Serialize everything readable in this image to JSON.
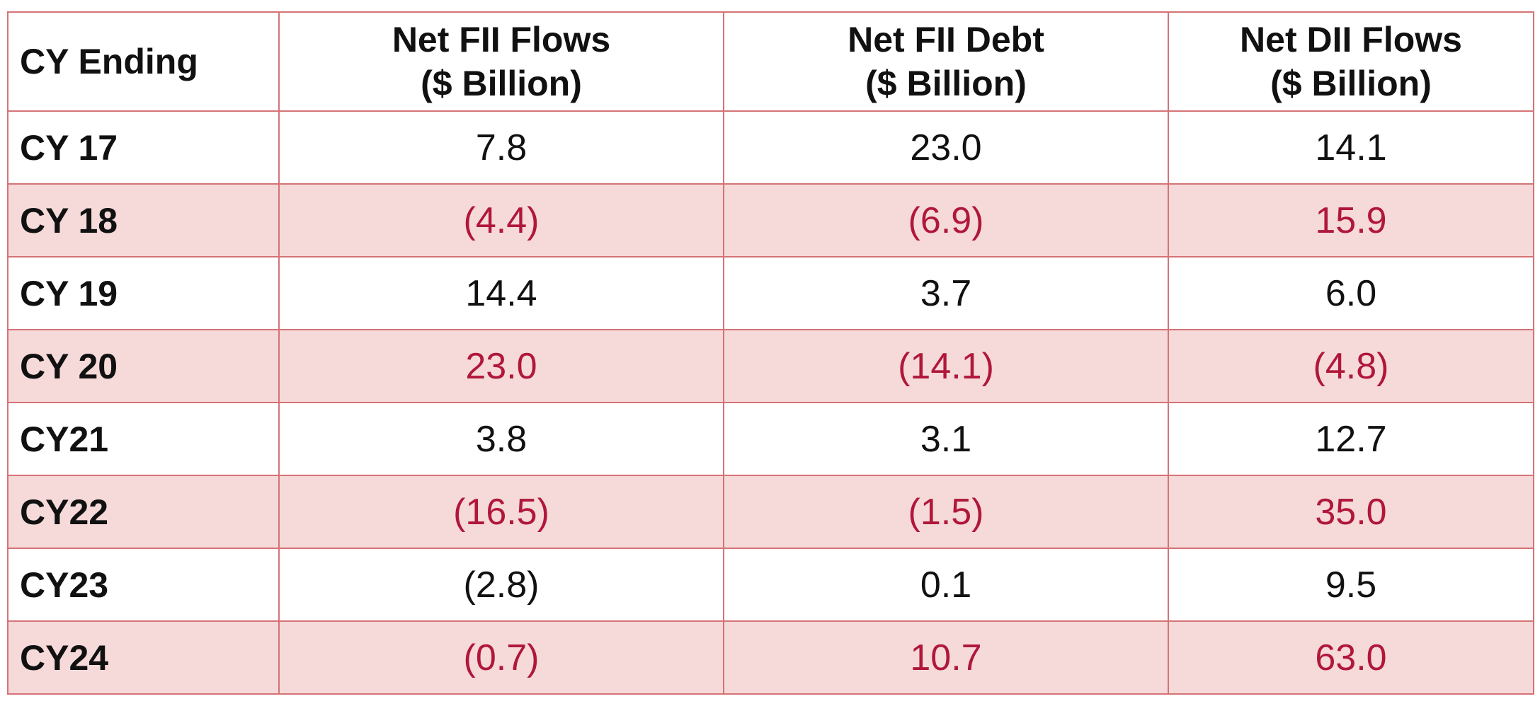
{
  "table": {
    "headers": [
      {
        "lines": [
          "CY Ending"
        ]
      },
      {
        "lines": [
          "Net FII Flows",
          "($ Billion)"
        ]
      },
      {
        "lines": [
          "Net FII Debt",
          "($ Billion)"
        ]
      },
      {
        "lines": [
          "Net DII Flows",
          "($ Billion)"
        ]
      }
    ],
    "rows": [
      {
        "label": "CY 17",
        "net_fii_flows": "7.8",
        "net_fii_debt": "23.0",
        "net_dii_flows": "14.1"
      },
      {
        "label": "CY 18",
        "net_fii_flows": "(4.4)",
        "net_fii_debt": "(6.9)",
        "net_dii_flows": "15.9"
      },
      {
        "label": "CY 19",
        "net_fii_flows": "14.4",
        "net_fii_debt": "3.7",
        "net_dii_flows": "6.0"
      },
      {
        "label": "CY 20",
        "net_fii_flows": "23.0",
        "net_fii_debt": "(14.1)",
        "net_dii_flows": "(4.8)"
      },
      {
        "label": "CY21",
        "net_fii_flows": "3.8",
        "net_fii_debt": "3.1",
        "net_dii_flows": "12.7"
      },
      {
        "label": "CY22",
        "net_fii_flows": "(16.5)",
        "net_fii_debt": "(1.5)",
        "net_dii_flows": "35.0"
      },
      {
        "label": "CY23",
        "net_fii_flows": "(2.8)",
        "net_fii_debt": "0.1",
        "net_dii_flows": "9.5"
      },
      {
        "label": "CY24",
        "net_fii_flows": "(0.7)",
        "net_fii_debt": "10.7",
        "net_dii_flows": "63.0"
      }
    ]
  },
  "colors": {
    "border": "#d47376",
    "shaded_row_background": "#f6d9d9",
    "shaded_row_value_text": "#b0173a",
    "text": "#111111"
  }
}
